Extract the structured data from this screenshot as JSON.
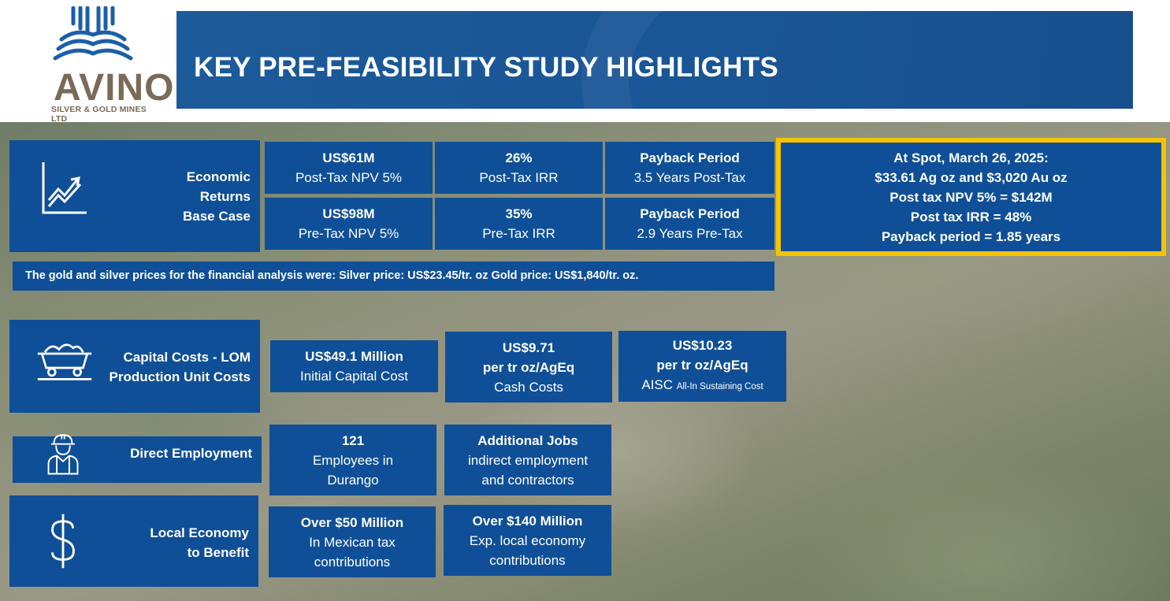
{
  "logo": {
    "word": "AVINO",
    "sub": "SILVER & GOLD MINES LTD"
  },
  "banner": {
    "title": "KEY PRE-FEASIBILITY STUDY HIGHLIGHTS"
  },
  "economic": {
    "label_lines": [
      "Economic",
      "Returns",
      "Base Case"
    ],
    "icon": "chart-up-icon",
    "cards": [
      {
        "value": "US$61M",
        "desc": "Post-Tax NPV 5%"
      },
      {
        "value": "26%",
        "desc": "Post-Tax IRR"
      },
      {
        "value": "Payback Period",
        "desc": "3.5 Years Post-Tax"
      },
      {
        "value": "US$98M",
        "desc": "Pre-Tax NPV 5%"
      },
      {
        "value": "35%",
        "desc": "Pre-Tax IRR"
      },
      {
        "value": "Payback Period",
        "desc": "2.9 Years Pre-Tax"
      }
    ]
  },
  "spot": {
    "lines": [
      "At Spot, March 26, 2025:",
      "$33.61 Ag oz and $3,020 Au oz",
      "Post tax NPV 5% = $142M",
      "Post tax IRR = 48%",
      "Payback period = 1.85 years"
    ],
    "border_color": "#f5c400"
  },
  "note": "The gold and silver prices for the financial analysis were: Silver price: US$23.45/tr. oz Gold price: US$1,840/tr. oz.",
  "capital": {
    "label_lines": [
      "Capital Costs - LOM",
      "Production Unit Costs"
    ],
    "icon": "mine-cart-icon",
    "cards": [
      {
        "value": "US$49.1 Million",
        "desc": "Initial  Capital Cost"
      },
      {
        "value": "US$9.71",
        "value2": "per tr oz/AgEq",
        "desc": "Cash Costs"
      },
      {
        "value": "US$10.23",
        "value2": "per tr oz/AgEq",
        "desc": "AISC",
        "desc_small": "All-In Sustaining Cost"
      }
    ]
  },
  "employment": {
    "label": "Direct Employment",
    "icon": "worker-icon",
    "cards": [
      {
        "value": "121",
        "desc1": "Employees in",
        "desc2": "Durango"
      },
      {
        "value": "Additional Jobs",
        "desc1": "indirect employment",
        "desc2": "and contractors"
      }
    ]
  },
  "local": {
    "label_lines": [
      "Local Economy",
      "to Benefit"
    ],
    "icon": "dollar-icon",
    "cards": [
      {
        "value": "Over $50 Million",
        "desc1": "In Mexican tax",
        "desc2": "contributions"
      },
      {
        "value": "Over $140 Million",
        "desc1": "Exp. local economy",
        "desc2": "contributions"
      }
    ]
  },
  "colors": {
    "primary": "#0f4f97",
    "banner": "#1a5595",
    "logo_blue": "#1a5fa8",
    "logo_brown": "#7a6a58"
  }
}
